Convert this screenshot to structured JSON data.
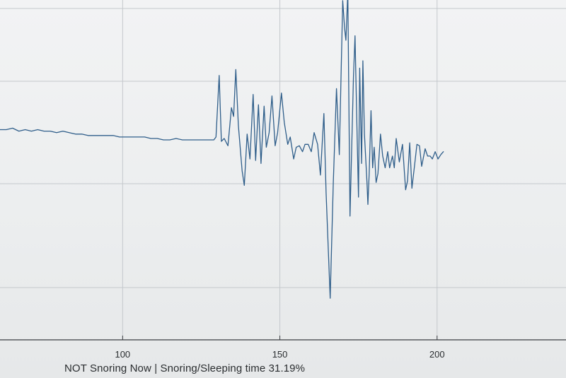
{
  "status_text": "NOT Snoring Now | Snoring/Sleeping time 31.19%",
  "colors": {
    "line": "#2f5e8a",
    "grid": "#c4c8cc",
    "axis": "#3a3d40"
  },
  "chart_data": {
    "type": "line",
    "title": "",
    "xlabel": "",
    "ylabel": "",
    "x_ticks": [
      100,
      150,
      200
    ],
    "xlim": [
      61,
      241
    ],
    "ylim": [
      -1,
      1
    ],
    "grid": true,
    "series": [
      {
        "x": [
          61,
          63,
          65,
          67,
          69,
          71,
          73,
          75,
          77,
          79,
          81,
          83,
          85,
          87,
          89,
          91,
          93,
          95,
          97,
          99,
          101,
          103,
          105,
          107,
          109,
          111,
          113,
          115,
          117,
          119,
          121,
          123,
          125,
          127,
          129,
          129.7,
          130.7,
          131.4,
          132.3,
          133.5,
          134.6,
          135.3,
          136,
          136.8,
          138,
          138.7,
          139.6,
          140.5,
          141.5,
          142.3,
          143.2,
          144,
          145,
          145.7,
          146.6,
          147.5,
          148.5,
          149.3,
          150.5,
          151.4,
          152.5,
          153.3,
          154.4,
          155.2,
          156.2,
          157.2,
          158,
          159,
          160,
          160.9,
          162,
          162.9,
          164,
          164.7,
          166,
          167,
          168,
          168.9,
          170,
          170.6,
          171,
          171.6,
          172.3,
          173.4,
          173.9,
          174.6,
          175,
          175.4,
          176,
          176.4,
          176.9,
          177.7,
          178,
          178.4,
          179,
          179.5,
          180,
          180.6,
          181.2,
          182,
          182.7,
          183.5,
          184.3,
          184.9,
          185.8,
          186.4,
          187,
          188,
          189,
          190,
          190.6,
          191.3,
          192,
          192.8,
          193.6,
          194.4,
          195.1,
          196.2,
          197,
          197.8,
          198.5,
          199.4,
          200.3,
          201.2,
          202
        ],
        "y": [
          0.13,
          0.13,
          0.14,
          0.12,
          0.13,
          0.12,
          0.13,
          0.12,
          0.12,
          0.11,
          0.12,
          0.11,
          0.1,
          0.1,
          0.09,
          0.09,
          0.09,
          0.09,
          0.09,
          0.08,
          0.08,
          0.08,
          0.08,
          0.08,
          0.07,
          0.07,
          0.06,
          0.06,
          0.07,
          0.06,
          0.06,
          0.06,
          0.06,
          0.06,
          0.06,
          0.08,
          0.5,
          0.05,
          0.07,
          0.02,
          0.28,
          0.22,
          0.54,
          0.16,
          -0.15,
          -0.25,
          0.1,
          -0.07,
          0.37,
          -0.08,
          0.3,
          -0.1,
          0.29,
          0.01,
          0.11,
          0.36,
          0.02,
          0.11,
          0.38,
          0.18,
          0.03,
          0.08,
          -0.07,
          0.01,
          0.02,
          -0.02,
          0.03,
          0.03,
          -0.02,
          0.11,
          0.03,
          -0.18,
          0.24,
          -0.3,
          -1.02,
          -0.23,
          0.41,
          -0.04,
          1.01,
          0.82,
          0.74,
          1.07,
          -0.46,
          0.49,
          0.77,
          0.06,
          -0.33,
          0.55,
          -0.1,
          0.6,
          0.1,
          -0.23,
          -0.38,
          -0.17,
          0.26,
          -0.13,
          0.01,
          -0.23,
          -0.17,
          0.1,
          -0.05,
          -0.13,
          -0.02,
          -0.13,
          -0.05,
          -0.13,
          0.07,
          -0.09,
          0.03,
          -0.28,
          -0.22,
          0.04,
          -0.27,
          -0.12,
          0.03,
          0.02,
          -0.12,
          0.0,
          -0.05,
          -0.05,
          -0.07,
          -0.02,
          -0.07,
          -0.04,
          -0.02
        ]
      }
    ]
  }
}
